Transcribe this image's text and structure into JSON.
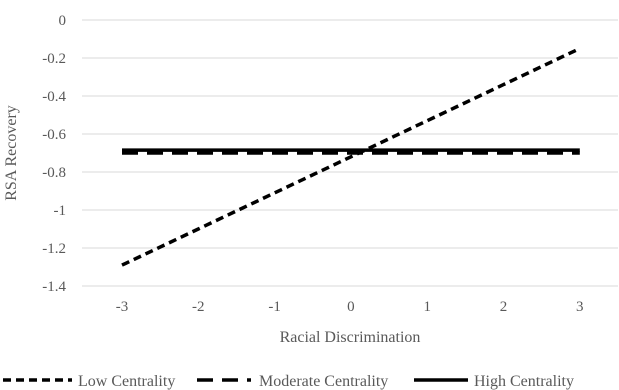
{
  "chart_data": {
    "type": "line",
    "title": "",
    "xlabel": "Racial Discrimination",
    "ylabel": "RSA Recovery",
    "x": [
      -3,
      -2,
      -1,
      0,
      1,
      2,
      3
    ],
    "x_ticks": [
      "-3",
      "-2",
      "-1",
      "0",
      "1",
      "2",
      "3"
    ],
    "y_ticks": [
      "0",
      "-0.2",
      "-0.4",
      "-0.6",
      "-0.8",
      "-1",
      "-1.2",
      "-1.4"
    ],
    "ylim": [
      -1.4,
      0
    ],
    "grid": true,
    "legend_position": "bottom",
    "series": [
      {
        "name": "Low Centrality",
        "style": "short-dash",
        "color": "#000000",
        "values": [
          -1.29,
          -1.1,
          -0.91,
          -0.72,
          -0.53,
          -0.34,
          -0.15
        ]
      },
      {
        "name": "Moderate Centrality",
        "style": "long-dash",
        "color": "#000000",
        "values": [
          -0.7,
          -0.7,
          -0.7,
          -0.7,
          -0.7,
          -0.7,
          -0.7
        ]
      },
      {
        "name": "High Centrality",
        "style": "solid",
        "color": "#000000",
        "values": [
          -0.685,
          -0.685,
          -0.685,
          -0.685,
          -0.685,
          -0.685,
          -0.685
        ]
      }
    ]
  }
}
